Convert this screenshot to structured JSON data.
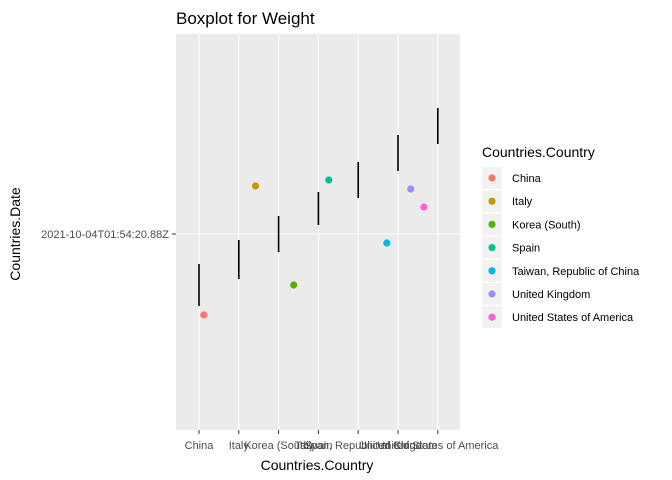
{
  "chart_data": {
    "type": "boxplot",
    "title": "Boxplot for Weight",
    "xlabel": "Countries.Country",
    "ylabel": "Countries.Date",
    "categories": [
      "China",
      "Italy",
      "Korea (South)",
      "Spain",
      "Taiwan, Republic of China",
      "United Kingdom",
      "United States of America"
    ],
    "y_tick_labels": [
      "2021-10-04T01:54:20.88Z"
    ],
    "boxes": [
      {
        "category": "China",
        "low": -2.4,
        "high": -1.0
      },
      {
        "category": "Italy",
        "low": -1.5,
        "high": -0.2
      },
      {
        "category": "Korea (South)",
        "low": -0.6,
        "high": 0.6
      },
      {
        "category": "Spain",
        "low": 0.3,
        "high": 1.4
      },
      {
        "category": "Taiwan, Republic of China",
        "low": 1.2,
        "high": 2.4
      },
      {
        "category": "United Kingdom",
        "low": 2.1,
        "high": 3.3
      },
      {
        "category": "United States of America",
        "low": 3.0,
        "high": 4.2
      }
    ],
    "points": [
      {
        "category": "China",
        "x_offset": 0.12,
        "y": -2.7
      },
      {
        "category": "Italy",
        "x_offset": 0.42,
        "y": 1.6
      },
      {
        "category": "Korea (South)",
        "x_offset": 0.38,
        "y": -1.7
      },
      {
        "category": "Spain",
        "x_offset": 0.26,
        "y": 1.8
      },
      {
        "category": "Taiwan, Republic of China",
        "x_offset": 0.72,
        "y": -0.3
      },
      {
        "category": "United Kingdom",
        "x_offset": 0.32,
        "y": 1.5
      },
      {
        "category": "United States of America",
        "x_offset": -0.35,
        "y": 0.9
      }
    ],
    "legend_title": "Countries.Country",
    "legend_position": "right",
    "colors": {
      "China": "#F8766D",
      "Italy": "#C49A00",
      "Korea (South)": "#53B400",
      "Spain": "#00C094",
      "Taiwan, Republic of China": "#00B6EB",
      "United Kingdom": "#A58AFF",
      "United States of America": "#FB61D7"
    },
    "panel_background": "#EBEBEB",
    "grid": true
  }
}
